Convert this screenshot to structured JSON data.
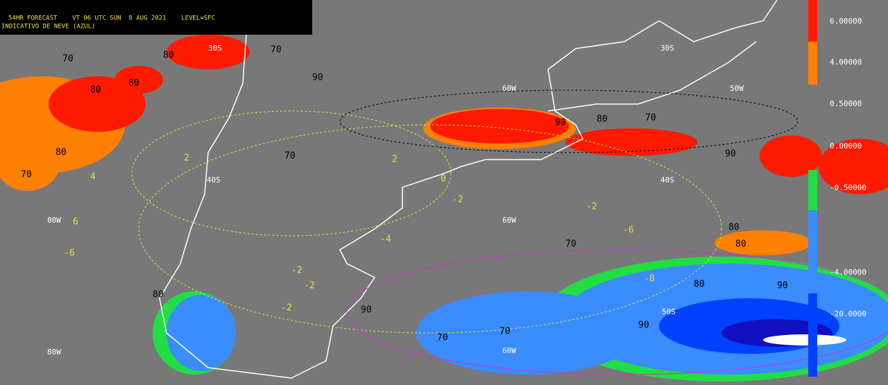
{
  "header": {
    "line1": "54HR FORECAST    VT 06 UTC SUN  8 AUG 2021    LEVEL=SFC",
    "line2": "INDICATIVO DE NEVE (AZUL)"
  },
  "colorbar": {
    "labels": [
      "6.00000",
      "4.00000",
      "0.50000",
      "0.00000",
      "-0.50000",
      "-4.00000",
      "-20.0000"
    ]
  },
  "grid_labels": [
    "30S",
    "30S",
    "60W",
    "50W",
    "40S",
    "40S",
    "80W",
    "60W",
    "50S",
    "80W",
    "60W"
  ],
  "contour_labels": [
    "70",
    "80",
    "70",
    "80",
    "80",
    "90",
    "70",
    "80",
    "90",
    "70",
    "80",
    "2",
    "2",
    "0",
    "-2",
    "-2",
    "-4",
    "-6",
    "-6",
    "6",
    "4",
    "-2",
    "-2",
    "-2",
    "-8",
    "70",
    "90",
    "80",
    "90",
    "70",
    "80",
    "90",
    "70",
    "70",
    "80",
    "80",
    "90"
  ]
}
